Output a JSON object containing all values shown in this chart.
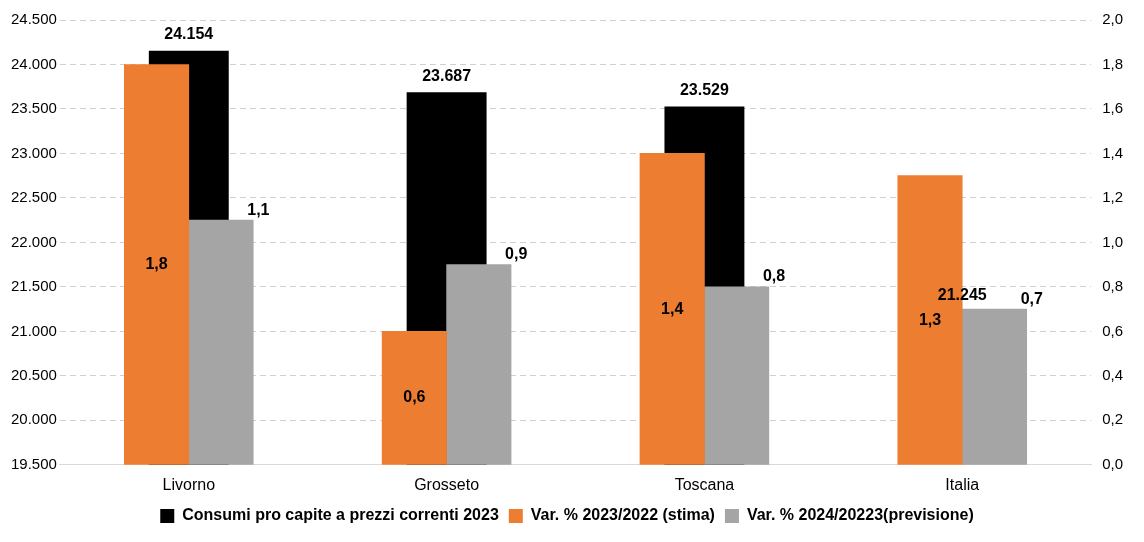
{
  "chart_data": {
    "type": "bar",
    "categories": [
      "Livorno",
      "Grosseto",
      "Toscana",
      "Italia"
    ],
    "series": [
      {
        "name": "Consumi pro capite a prezzi correnti 2023",
        "color": "#000000",
        "values": [
          24154,
          23687,
          23529,
          null
        ],
        "value_labels": [
          "24.154",
          "23.687",
          "23.529",
          null
        ]
      },
      {
        "name": "Var. % 2023/2022 (stima)",
        "color": "#ed7d31",
        "axis": "y2",
        "values": [
          1.8,
          0.6,
          1.4,
          1.3
        ],
        "value_labels": [
          "1,8",
          "0,6",
          "1,4",
          "1,3"
        ]
      },
      {
        "name": "Var. % 2024/20223(previsione)",
        "color": "#a5a5a5",
        "axis": "y2",
        "values": [
          1.1,
          0.9,
          0.8,
          0.7
        ],
        "value_labels": [
          "1,1",
          "0,9",
          "0,8",
          "0,7"
        ]
      }
    ],
    "ylim": [
      19500,
      24500
    ],
    "yticks": [
      {
        "value": 19500,
        "label": "19.500"
      },
      {
        "value": 20000,
        "label": "20.000"
      },
      {
        "value": 20500,
        "label": "20.500"
      },
      {
        "value": 21000,
        "label": "21.000"
      },
      {
        "value": 21500,
        "label": "21.500"
      },
      {
        "value": 22000,
        "label": "22.000"
      },
      {
        "value": 22500,
        "label": "22.500"
      },
      {
        "value": 23000,
        "label": "23.000"
      },
      {
        "value": 23500,
        "label": "23.500"
      },
      {
        "value": 24000,
        "label": "24.000"
      },
      {
        "value": 24500,
        "label": "24.500"
      }
    ],
    "y2lim": [
      0,
      2
    ],
    "y2ticks": [
      {
        "value": 0,
        "label": "0,0"
      },
      {
        "value": 0.2,
        "label": "0,2"
      },
      {
        "value": 0.4,
        "label": "0,4"
      },
      {
        "value": 0.6,
        "label": "0,6"
      },
      {
        "value": 0.8,
        "label": "0,8"
      },
      {
        "value": 1,
        "label": "1,0"
      },
      {
        "value": 1.2,
        "label": "1,2"
      },
      {
        "value": 1.4,
        "label": "1,4"
      },
      {
        "value": 1.6,
        "label": "1,6"
      },
      {
        "value": 1.8,
        "label": "1,8"
      },
      {
        "value": 2,
        "label": "2,0"
      }
    ],
    "annotations": [
      {
        "text": "21.245",
        "x": "Italia",
        "y": 21245
      }
    ],
    "grid": "y",
    "legend": "bottom"
  }
}
